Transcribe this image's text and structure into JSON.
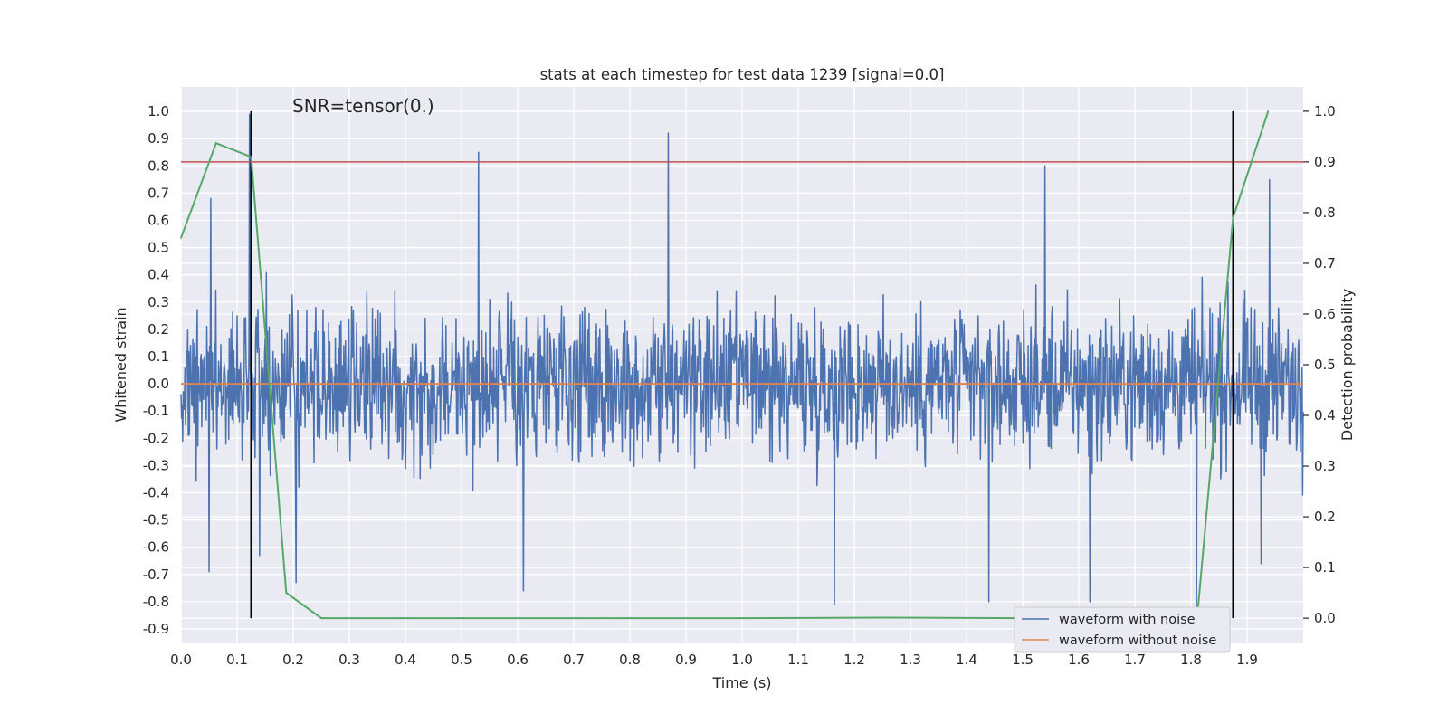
{
  "chart_data": {
    "type": "line",
    "title": "stats at each timestep for test data 1239 [signal=0.0]",
    "xlabel": "Time (s)",
    "ylabel": "Whitened strain",
    "y2label": "Detection probability",
    "annotation": "SNR=tensor(0.)",
    "xlim": [
      0.0,
      2.0
    ],
    "ylim": [
      -0.95,
      1.09
    ],
    "y2lim": [
      -0.048,
      1.048
    ],
    "x_ticks": [
      "0.0",
      "0.1",
      "0.2",
      "0.3",
      "0.4",
      "0.5",
      "0.6",
      "0.7",
      "0.8",
      "0.9",
      "1.0",
      "1.1",
      "1.2",
      "1.3",
      "1.4",
      "1.5",
      "1.6",
      "1.7",
      "1.8",
      "1.9"
    ],
    "y_ticks": [
      "1.0",
      "0.9",
      "0.8",
      "0.7",
      "0.6",
      "0.5",
      "0.4",
      "0.3",
      "0.2",
      "0.1",
      "0.0",
      "-0.1",
      "-0.2",
      "-0.3",
      "-0.4",
      "-0.5",
      "-0.6",
      "-0.7",
      "-0.8",
      "-0.9"
    ],
    "y2_ticks": [
      "1.0",
      "0.9",
      "0.8",
      "0.7",
      "0.6",
      "0.5",
      "0.4",
      "0.3",
      "0.2",
      "0.1",
      "0.0"
    ],
    "grid": true,
    "legend": {
      "placement": "bottom-right",
      "entries": [
        "waveform with noise",
        "waveform without noise"
      ]
    },
    "series": [
      {
        "name": "waveform with noise",
        "axis": "left",
        "color": "#4c72b0",
        "noise": {
          "samples": 2000,
          "mean": 0.0,
          "spread": 0.27
        },
        "peaks": [
          [
            0.05,
            -0.69
          ],
          [
            0.053,
            0.68
          ],
          [
            0.122,
            0.99
          ],
          [
            0.14,
            -0.63
          ],
          [
            0.205,
            -0.73
          ],
          [
            0.53,
            0.85
          ],
          [
            0.61,
            -0.76
          ],
          [
            0.868,
            0.92
          ],
          [
            1.165,
            -0.81
          ],
          [
            1.44,
            -0.8
          ],
          [
            1.54,
            0.8
          ],
          [
            1.62,
            -0.8
          ],
          [
            1.81,
            -0.82
          ],
          [
            1.94,
            0.75
          ],
          [
            1.925,
            -0.66
          ]
        ]
      },
      {
        "name": "waveform without noise",
        "axis": "left",
        "color": "#dd8452",
        "x": [
          0.0,
          2.0
        ],
        "y": [
          0.0,
          0.0
        ]
      },
      {
        "name": "",
        "axis": "right",
        "color": "#55a868",
        "x": [
          0.0,
          0.0625,
          0.125,
          0.1875,
          0.25,
          0.5,
          0.75,
          1.0,
          1.25,
          1.5,
          1.75,
          1.8125,
          1.875,
          1.9375
        ],
        "y": [
          0.75,
          0.937,
          0.91,
          0.05,
          0.0,
          0.0,
          0.0,
          0.0,
          0.001,
          0.0,
          0.0,
          0.02,
          0.79,
          1.0
        ]
      }
    ],
    "reference_lines": [
      {
        "axis": "right",
        "orientation": "horizontal",
        "value": 0.9,
        "color": "#c44e52"
      },
      {
        "axis": "right",
        "orientation": "vertical",
        "value": 0.125,
        "range": [
          0.0,
          1.0
        ],
        "color": "#000000"
      },
      {
        "axis": "right",
        "orientation": "vertical",
        "value": 1.875,
        "range": [
          0.0,
          1.0
        ],
        "color": "#000000"
      }
    ],
    "colors": {
      "plot_background": "#eaeaf2",
      "grid": "#ffffff"
    }
  }
}
